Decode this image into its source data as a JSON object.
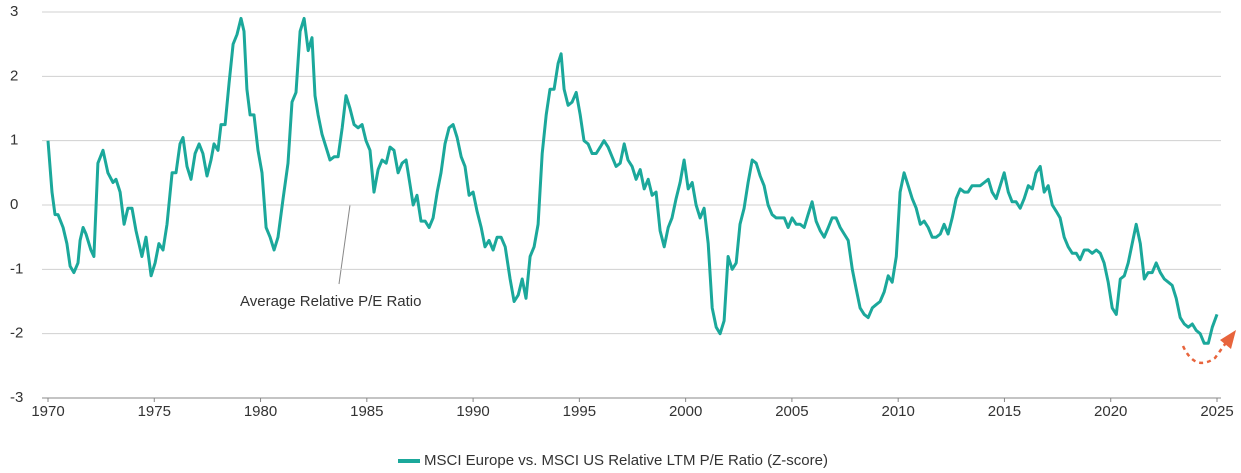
{
  "chart_data": {
    "type": "line",
    "annotations": [
      "Average Relative P/E Ratio"
    ],
    "x": [
      1970.0,
      1970.19,
      1970.33,
      1970.47,
      1970.71,
      1970.89,
      1971.04,
      1971.22,
      1971.41,
      1971.51,
      1971.65,
      1971.79,
      1972.02,
      1972.16,
      1972.35,
      1972.59,
      1972.82,
      1973.06,
      1973.2,
      1973.39,
      1973.58,
      1973.76,
      1973.95,
      1974.14,
      1974.42,
      1974.61,
      1974.85,
      1975.04,
      1975.22,
      1975.41,
      1975.6,
      1975.84,
      1976.02,
      1976.21,
      1976.35,
      1976.54,
      1976.73,
      1976.92,
      1977.11,
      1977.29,
      1977.48,
      1977.67,
      1977.81,
      1978.0,
      1978.14,
      1978.33,
      1978.52,
      1978.71,
      1978.89,
      1979.08,
      1979.22,
      1979.36,
      1979.51,
      1979.69,
      1979.88,
      1980.07,
      1980.26,
      1980.45,
      1980.64,
      1980.82,
      1981.06,
      1981.29,
      1981.48,
      1981.67,
      1981.86,
      1982.05,
      1982.24,
      1982.42,
      1982.56,
      1982.71,
      1982.89,
      1983.08,
      1983.27,
      1983.46,
      1983.65,
      1983.84,
      1984.02,
      1984.21,
      1984.4,
      1984.59,
      1984.78,
      1984.96,
      1985.15,
      1985.34,
      1985.53,
      1985.72,
      1985.91,
      1986.09,
      1986.28,
      1986.47,
      1986.66,
      1986.85,
      1987.04,
      1987.18,
      1987.36,
      1987.55,
      1987.74,
      1987.93,
      1988.12,
      1988.31,
      1988.49,
      1988.68,
      1988.87,
      1989.06,
      1989.25,
      1989.44,
      1989.62,
      1989.81,
      1990.0,
      1990.19,
      1990.38,
      1990.56,
      1990.75,
      1990.94,
      1991.13,
      1991.32,
      1991.51,
      1991.74,
      1991.93,
      1992.12,
      1992.31,
      1992.49,
      1992.68,
      1992.87,
      1993.06,
      1993.25,
      1993.44,
      1993.62,
      1993.81,
      1994.0,
      1994.14,
      1994.28,
      1994.47,
      1994.66,
      1994.85,
      1995.04,
      1995.22,
      1995.41,
      1995.6,
      1995.79,
      1995.98,
      1996.16,
      1996.35,
      1996.54,
      1996.73,
      1996.92,
      1997.11,
      1997.29,
      1997.48,
      1997.67,
      1997.86,
      1998.05,
      1998.24,
      1998.42,
      1998.61,
      1998.8,
      1998.99,
      1999.18,
      1999.36,
      1999.55,
      1999.74,
      1999.93,
      2000.12,
      2000.31,
      2000.49,
      2000.68,
      2000.87,
      2001.06,
      2001.25,
      2001.44,
      2001.62,
      2001.81,
      2002.0,
      2002.19,
      2002.38,
      2002.56,
      2002.75,
      2002.94,
      2003.13,
      2003.32,
      2003.51,
      2003.69,
      2003.88,
      2004.07,
      2004.26,
      2004.45,
      2004.64,
      2004.82,
      2005.01,
      2005.2,
      2005.39,
      2005.58,
      2005.76,
      2005.95,
      2006.14,
      2006.33,
      2006.52,
      2006.71,
      2006.89,
      2007.08,
      2007.27,
      2007.46,
      2007.65,
      2007.84,
      2008.02,
      2008.21,
      2008.4,
      2008.59,
      2008.78,
      2008.96,
      2009.15,
      2009.34,
      2009.53,
      2009.72,
      2009.91,
      2010.09,
      2010.28,
      2010.47,
      2010.66,
      2010.85,
      2011.04,
      2011.22,
      2011.41,
      2011.6,
      2011.79,
      2011.98,
      2012.16,
      2012.35,
      2012.54,
      2012.73,
      2012.92,
      2013.11,
      2013.29,
      2013.48,
      2013.67,
      2013.86,
      2014.05,
      2014.24,
      2014.42,
      2014.61,
      2014.8,
      2014.99,
      2015.18,
      2015.36,
      2015.55,
      2015.74,
      2015.93,
      2016.12,
      2016.31,
      2016.49,
      2016.68,
      2016.87,
      2017.06,
      2017.25,
      2017.44,
      2017.62,
      2017.81,
      2018.0,
      2018.19,
      2018.38,
      2018.56,
      2018.75,
      2018.94,
      2019.13,
      2019.32,
      2019.51,
      2019.69,
      2019.88,
      2020.07,
      2020.26,
      2020.45,
      2020.64,
      2020.82,
      2021.01,
      2021.2,
      2021.39,
      2021.58,
      2021.76,
      2021.95,
      2022.14,
      2022.33,
      2022.52,
      2022.71,
      2022.89,
      2023.08,
      2023.27,
      2023.46,
      2023.65,
      2023.84,
      2024.02,
      2024.21,
      2024.4,
      2024.59,
      2024.78,
      2025.0
    ],
    "series": [
      {
        "name": "MSCI Europe vs. MSCI US Relative LTM P/E Ratio (Z-score)",
        "color": "#1ba89b",
        "values": [
          1.0,
          0.2,
          -0.15,
          -0.15,
          -0.35,
          -0.6,
          -0.95,
          -1.05,
          -0.9,
          -0.55,
          -0.35,
          -0.45,
          -0.7,
          -0.8,
          0.65,
          0.85,
          0.5,
          0.35,
          0.4,
          0.2,
          -0.3,
          -0.05,
          -0.05,
          -0.4,
          -0.8,
          -0.5,
          -1.1,
          -0.9,
          -0.6,
          -0.7,
          -0.3,
          0.5,
          0.5,
          0.95,
          1.05,
          0.6,
          0.4,
          0.8,
          0.95,
          0.8,
          0.45,
          0.7,
          0.95,
          0.85,
          1.25,
          1.25,
          1.9,
          2.5,
          2.65,
          2.9,
          2.7,
          1.8,
          1.4,
          1.4,
          0.85,
          0.5,
          -0.35,
          -0.5,
          -0.7,
          -0.5,
          0.1,
          0.65,
          1.6,
          1.75,
          2.7,
          2.9,
          2.4,
          2.6,
          1.7,
          1.4,
          1.1,
          0.9,
          0.7,
          0.75,
          0.75,
          1.2,
          1.7,
          1.5,
          1.25,
          1.2,
          1.25,
          1.0,
          0.85,
          0.2,
          0.55,
          0.7,
          0.65,
          0.9,
          0.85,
          0.5,
          0.65,
          0.7,
          0.3,
          0.0,
          0.15,
          -0.25,
          -0.25,
          -0.35,
          -0.2,
          0.2,
          0.5,
          0.95,
          1.2,
          1.25,
          1.05,
          0.75,
          0.6,
          0.15,
          0.2,
          -0.1,
          -0.35,
          -0.65,
          -0.55,
          -0.7,
          -0.5,
          -0.5,
          -0.65,
          -1.15,
          -1.5,
          -1.4,
          -1.15,
          -1.45,
          -0.8,
          -0.65,
          -0.3,
          0.8,
          1.4,
          1.8,
          1.8,
          2.2,
          2.35,
          1.8,
          1.55,
          1.6,
          1.75,
          1.4,
          1.0,
          0.95,
          0.8,
          0.8,
          0.9,
          1.0,
          0.9,
          0.75,
          0.6,
          0.65,
          0.95,
          0.7,
          0.6,
          0.4,
          0.55,
          0.25,
          0.4,
          0.15,
          0.2,
          -0.4,
          -0.65,
          -0.35,
          -0.2,
          0.1,
          0.35,
          0.7,
          0.25,
          0.35,
          0.0,
          -0.2,
          -0.05,
          -0.6,
          -1.6,
          -1.9,
          -2.0,
          -1.8,
          -0.8,
          -1.0,
          -0.9,
          -0.3,
          -0.05,
          0.35,
          0.7,
          0.65,
          0.45,
          0.3,
          0.0,
          -0.15,
          -0.2,
          -0.2,
          -0.2,
          -0.35,
          -0.2,
          -0.3,
          -0.3,
          -0.35,
          -0.15,
          0.05,
          -0.25,
          -0.4,
          -0.5,
          -0.35,
          -0.2,
          -0.2,
          -0.35,
          -0.45,
          -0.55,
          -1.0,
          -1.3,
          -1.6,
          -1.7,
          -1.75,
          -1.6,
          -1.55,
          -1.5,
          -1.35,
          -1.1,
          -1.2,
          -0.8,
          0.2,
          0.5,
          0.3,
          0.1,
          -0.05,
          -0.3,
          -0.25,
          -0.35,
          -0.5,
          -0.5,
          -0.45,
          -0.3,
          -0.45,
          -0.2,
          0.1,
          0.25,
          0.2,
          0.2,
          0.3,
          0.3,
          0.3,
          0.35,
          0.4,
          0.2,
          0.1,
          0.3,
          0.5,
          0.2,
          0.05,
          0.05,
          -0.05,
          0.1,
          0.3,
          0.25,
          0.5,
          0.6,
          0.2,
          0.3,
          0.0,
          -0.1,
          -0.2,
          -0.5,
          -0.65,
          -0.75,
          -0.75,
          -0.85,
          -0.7,
          -0.7,
          -0.75,
          -0.7,
          -0.75,
          -0.9,
          -1.2,
          -1.6,
          -1.7,
          -1.15,
          -1.1,
          -0.9,
          -0.6,
          -0.3,
          -0.6,
          -1.15,
          -1.05,
          -1.05,
          -0.9,
          -1.05,
          -1.15,
          -1.2,
          -1.25,
          -1.45,
          -1.75,
          -1.85,
          -1.9,
          -1.85,
          -1.95,
          -2.0,
          -2.15,
          -2.15,
          -1.9,
          -1.7
        ]
      }
    ],
    "xlim": [
      1970,
      2025
    ],
    "xticks": [
      1970,
      1975,
      1980,
      1985,
      1990,
      1995,
      2000,
      2005,
      2010,
      2015,
      2020,
      2025
    ],
    "ylim": [
      -3,
      3
    ],
    "yticks": [
      -3,
      -2,
      -1,
      0,
      1,
      2,
      3
    ],
    "grid": true,
    "legend": "bottom"
  }
}
